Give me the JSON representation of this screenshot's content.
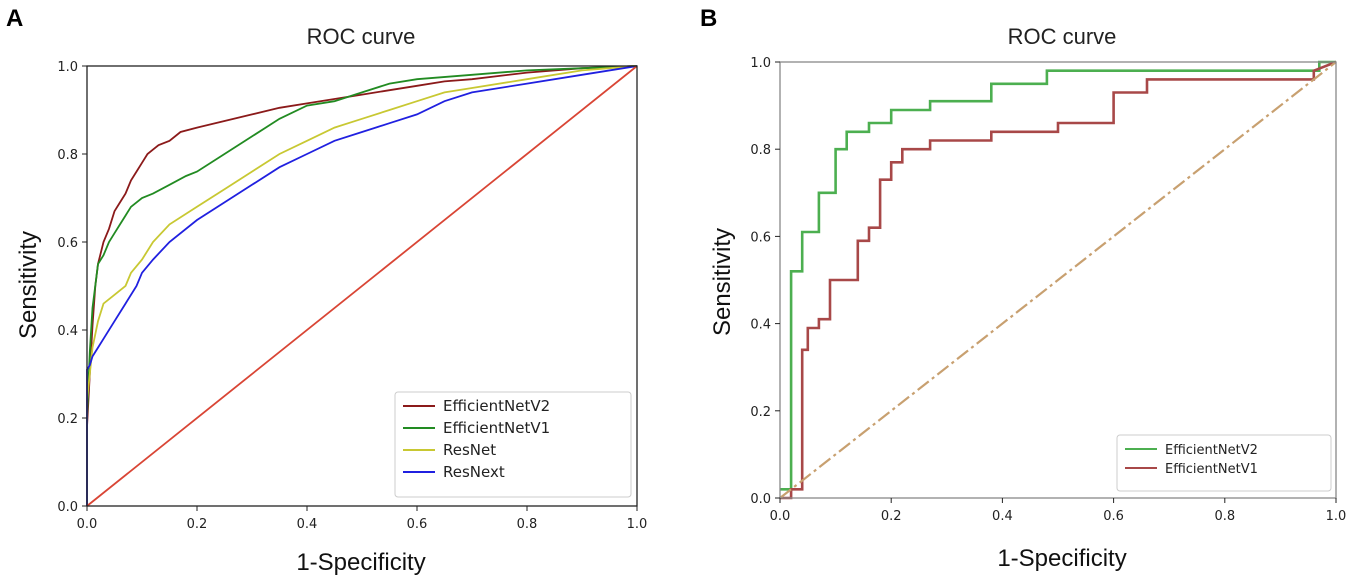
{
  "chart_data": [
    {
      "panel": "A",
      "type": "line",
      "title": "ROC curve",
      "xlabel": "1-Specificity",
      "ylabel": "Sensitivity",
      "xlim": [
        0,
        1
      ],
      "ylim": [
        0,
        1
      ],
      "xticks": [
        "0.0",
        "0.2",
        "0.4",
        "0.6",
        "0.8",
        "1.0"
      ],
      "yticks": [
        "0.0",
        "0.2",
        "0.4",
        "0.6",
        "0.8",
        "1.0"
      ],
      "legend_position": "bottom-right",
      "series": [
        {
          "name": "EfficientNetV2",
          "color": "#8b1a1a",
          "x": [
            0,
            0,
            0.005,
            0.01,
            0.015,
            0.02,
            0.03,
            0.04,
            0.05,
            0.06,
            0.07,
            0.08,
            0.09,
            0.1,
            0.11,
            0.12,
            0.13,
            0.15,
            0.17,
            0.2,
            0.25,
            0.3,
            0.35,
            0.4,
            0.45,
            0.5,
            0.55,
            0.6,
            0.65,
            0.7,
            0.8,
            0.9,
            1.0
          ],
          "y": [
            0,
            0.18,
            0.3,
            0.41,
            0.5,
            0.55,
            0.6,
            0.63,
            0.67,
            0.69,
            0.71,
            0.74,
            0.76,
            0.78,
            0.8,
            0.81,
            0.82,
            0.83,
            0.85,
            0.86,
            0.875,
            0.89,
            0.905,
            0.915,
            0.925,
            0.935,
            0.945,
            0.955,
            0.965,
            0.97,
            0.985,
            0.995,
            1.0
          ]
        },
        {
          "name": "EfficientNetV1",
          "color": "#228b22",
          "x": [
            0,
            0,
            0.005,
            0.01,
            0.02,
            0.03,
            0.04,
            0.05,
            0.06,
            0.07,
            0.08,
            0.1,
            0.12,
            0.15,
            0.18,
            0.2,
            0.25,
            0.3,
            0.35,
            0.4,
            0.45,
            0.5,
            0.55,
            0.6,
            0.7,
            0.8,
            0.9,
            1.0
          ],
          "y": [
            0,
            0.2,
            0.35,
            0.45,
            0.55,
            0.57,
            0.6,
            0.62,
            0.64,
            0.66,
            0.68,
            0.7,
            0.71,
            0.73,
            0.75,
            0.76,
            0.8,
            0.84,
            0.88,
            0.91,
            0.92,
            0.94,
            0.96,
            0.97,
            0.98,
            0.99,
            0.995,
            1.0
          ]
        },
        {
          "name": "ResNet",
          "color": "#c8c832",
          "x": [
            0,
            0,
            0.005,
            0.01,
            0.02,
            0.03,
            0.05,
            0.07,
            0.08,
            0.1,
            0.12,
            0.15,
            0.2,
            0.25,
            0.3,
            0.35,
            0.4,
            0.45,
            0.5,
            0.55,
            0.6,
            0.65,
            0.7,
            0.8,
            0.9,
            1.0
          ],
          "y": [
            0,
            0.24,
            0.3,
            0.36,
            0.42,
            0.46,
            0.48,
            0.5,
            0.53,
            0.56,
            0.6,
            0.64,
            0.68,
            0.72,
            0.76,
            0.8,
            0.83,
            0.86,
            0.88,
            0.9,
            0.92,
            0.94,
            0.95,
            0.97,
            0.99,
            1.0
          ]
        },
        {
          "name": "ResNext",
          "color": "#2020e0",
          "x": [
            0,
            0,
            0.005,
            0.01,
            0.02,
            0.03,
            0.05,
            0.07,
            0.09,
            0.1,
            0.12,
            0.15,
            0.2,
            0.25,
            0.3,
            0.35,
            0.4,
            0.45,
            0.5,
            0.55,
            0.6,
            0.65,
            0.7,
            0.8,
            0.9,
            1.0
          ],
          "y": [
            0,
            0.31,
            0.32,
            0.34,
            0.36,
            0.38,
            0.42,
            0.46,
            0.5,
            0.53,
            0.56,
            0.6,
            0.65,
            0.69,
            0.73,
            0.77,
            0.8,
            0.83,
            0.85,
            0.87,
            0.89,
            0.92,
            0.94,
            0.96,
            0.98,
            1.0
          ]
        },
        {
          "name": "diagonal",
          "color": "#d94535",
          "legend": false,
          "x": [
            0,
            1
          ],
          "y": [
            0,
            1
          ]
        }
      ]
    },
    {
      "panel": "B",
      "type": "line",
      "title": "ROC curve",
      "xlabel": "1-Specificity",
      "ylabel": "Sensitivity",
      "xlim": [
        0,
        1
      ],
      "ylim": [
        0,
        1
      ],
      "xticks": [
        "0.0",
        "0.2",
        "0.4",
        "0.6",
        "0.8",
        "1.0"
      ],
      "yticks": [
        "0.0",
        "0.2",
        "0.4",
        "0.6",
        "0.8",
        "1.0"
      ],
      "legend_position": "bottom-right",
      "series": [
        {
          "name": "EfficientNetV2",
          "color": "#4caf50",
          "step": true,
          "x": [
            0,
            0.02,
            0.02,
            0.04,
            0.04,
            0.07,
            0.07,
            0.1,
            0.1,
            0.12,
            0.12,
            0.16,
            0.16,
            0.2,
            0.2,
            0.27,
            0.27,
            0.38,
            0.38,
            0.48,
            0.48,
            0.97,
            0.97,
            1.0
          ],
          "y": [
            0.02,
            0.02,
            0.52,
            0.52,
            0.61,
            0.61,
            0.7,
            0.7,
            0.8,
            0.8,
            0.84,
            0.84,
            0.86,
            0.86,
            0.89,
            0.89,
            0.91,
            0.91,
            0.95,
            0.95,
            0.98,
            0.98,
            1.0,
            1.0
          ]
        },
        {
          "name": "EfficientNetV1",
          "color": "#a84848",
          "step": true,
          "x": [
            0,
            0.02,
            0.02,
            0.04,
            0.04,
            0.05,
            0.05,
            0.07,
            0.07,
            0.09,
            0.09,
            0.14,
            0.14,
            0.16,
            0.16,
            0.18,
            0.18,
            0.2,
            0.2,
            0.22,
            0.22,
            0.27,
            0.27,
            0.38,
            0.38,
            0.5,
            0.5,
            0.6,
            0.6,
            0.66,
            0.66,
            0.96,
            0.96,
            1.0
          ],
          "y": [
            0,
            0,
            0.02,
            0.02,
            0.34,
            0.34,
            0.39,
            0.39,
            0.41,
            0.41,
            0.5,
            0.5,
            0.59,
            0.59,
            0.62,
            0.62,
            0.73,
            0.73,
            0.77,
            0.77,
            0.8,
            0.8,
            0.82,
            0.82,
            0.84,
            0.84,
            0.86,
            0.86,
            0.93,
            0.93,
            0.96,
            0.96,
            0.98,
            1.0
          ]
        },
        {
          "name": "diagonal",
          "color": "#c8a070",
          "dashed": true,
          "legend": false,
          "x": [
            0,
            1
          ],
          "y": [
            0,
            1
          ]
        }
      ]
    }
  ],
  "panels": {
    "a": {
      "letter": "A",
      "title": "ROC curve",
      "xlabel": "1-Specificity",
      "ylabel": "Sensitivity"
    },
    "b": {
      "letter": "B",
      "title": "ROC curve",
      "xlabel": "1-Specificity",
      "ylabel": "Sensitivity"
    }
  }
}
